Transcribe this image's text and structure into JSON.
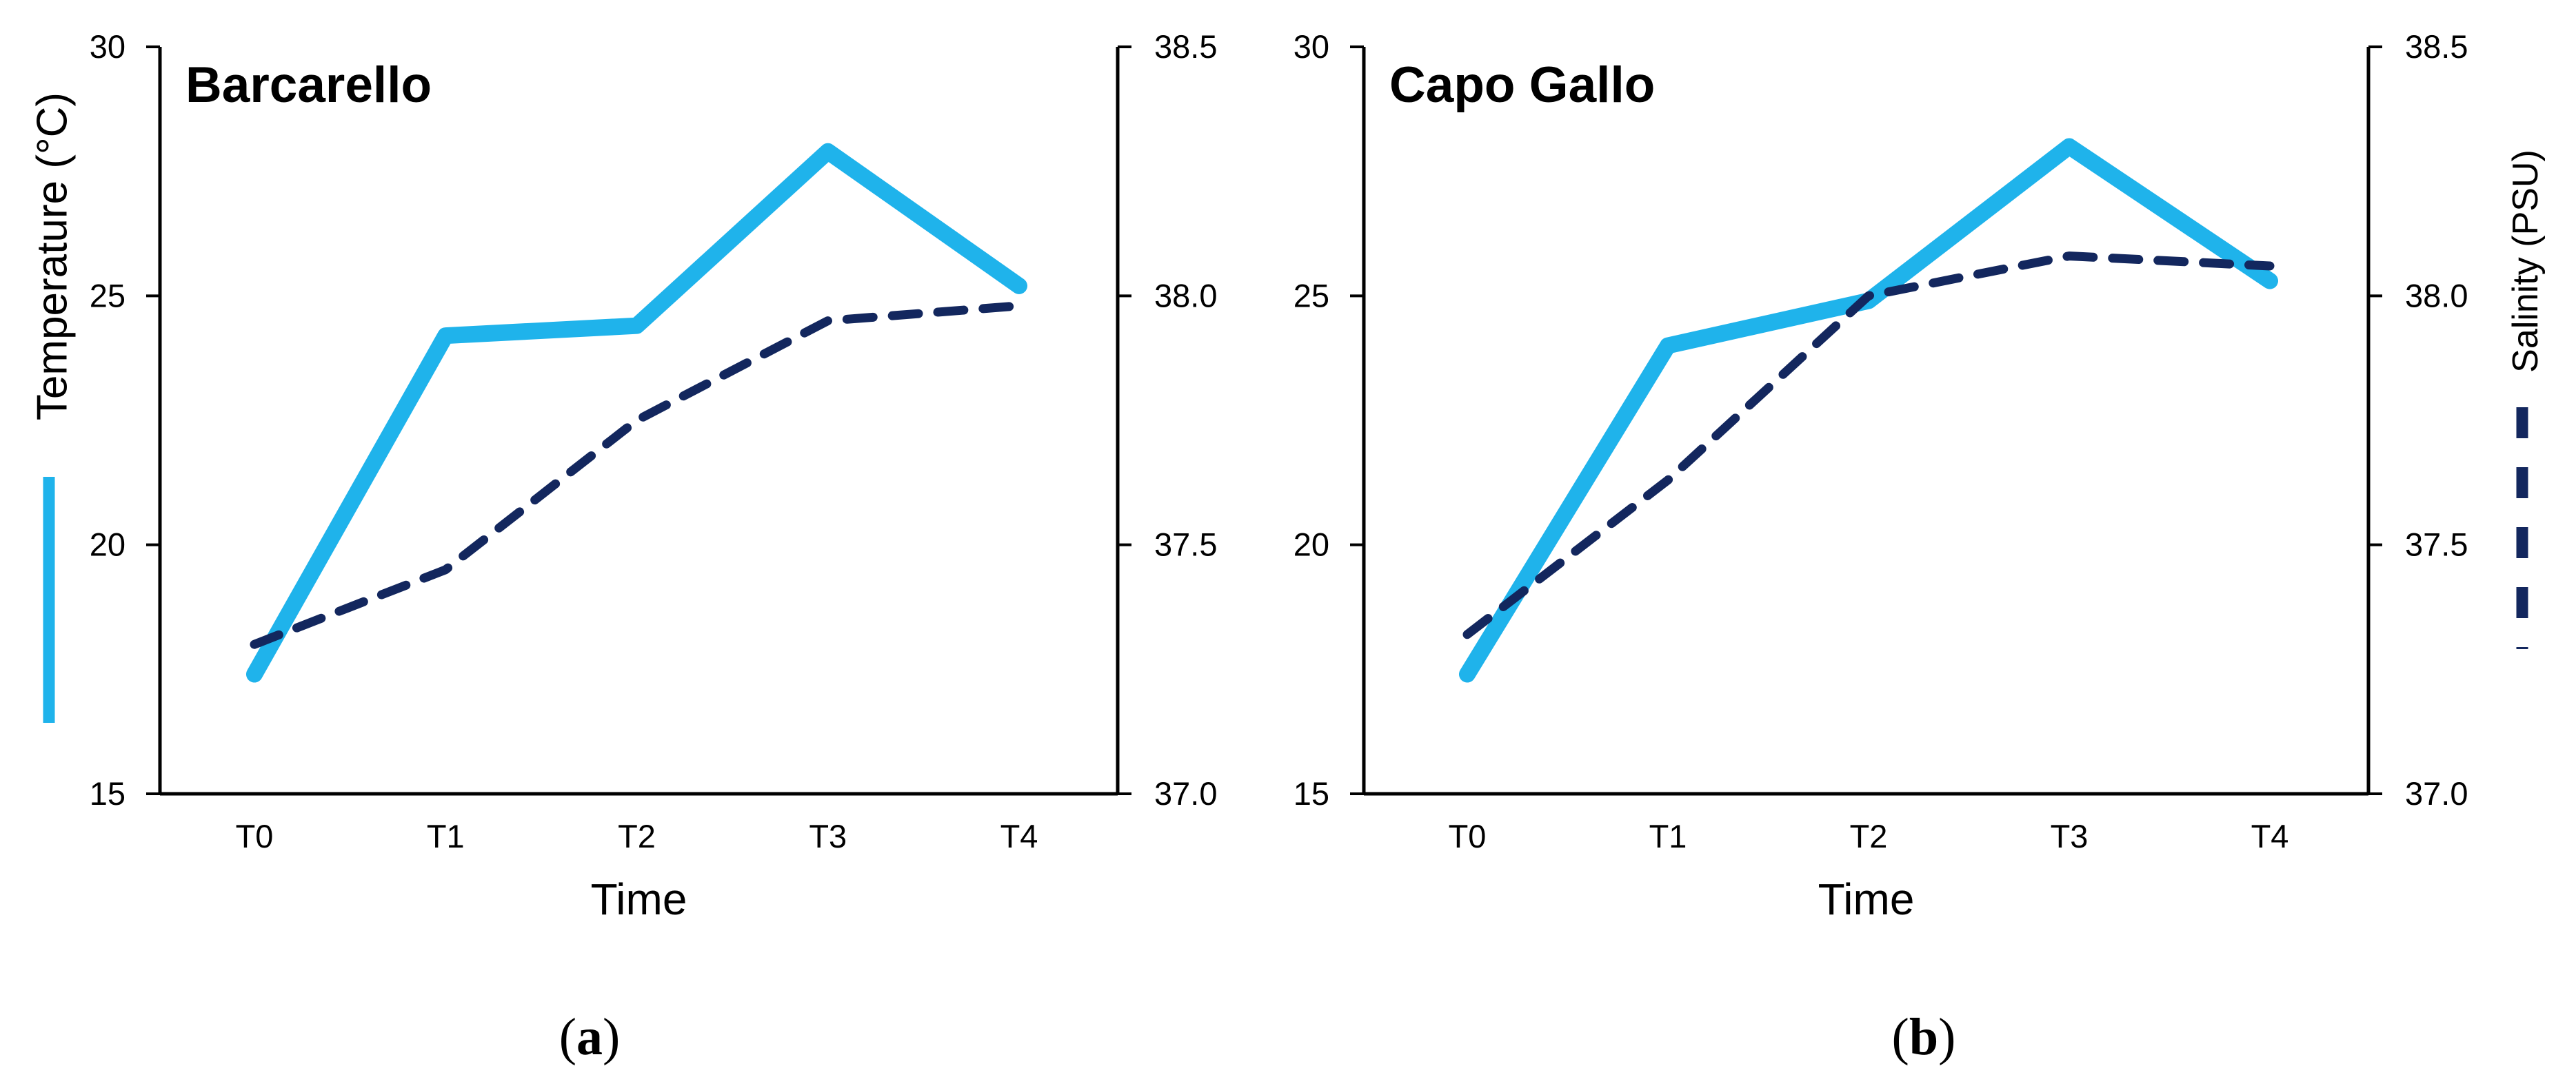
{
  "figure": {
    "background": "#FFFFFF",
    "colors": {
      "temperature_line": "#1FB3EB",
      "salinity_line": "#13275E",
      "axis": "#000000"
    },
    "legend": {
      "temperature_swatch": "solid-cyan-vertical-line",
      "salinity_swatch": "dashed-navy-vertical-line"
    }
  },
  "chart_data": [
    {
      "panel": "a",
      "type": "line",
      "title": "Barcarello",
      "categories": [
        "T0",
        "T1",
        "T2",
        "T3",
        "T4"
      ],
      "xlabel": "Time",
      "left_axis": {
        "label": "Temperature (°C)",
        "range": [
          15,
          30
        ],
        "tick_labels": [
          "30",
          "25",
          "20",
          "15"
        ]
      },
      "right_axis": {
        "label": "",
        "range": [
          37.0,
          38.5
        ],
        "tick_labels": [
          "38.5",
          "38.0",
          "37.5",
          "37.0"
        ]
      },
      "series": [
        {
          "name": "Temperature",
          "axis": "left",
          "line_style": "solid",
          "values": [
            17.4,
            24.2,
            24.4,
            27.9,
            25.2
          ]
        },
        {
          "name": "Salinity",
          "axis": "right",
          "line_style": "dashed",
          "values": [
            37.3,
            37.45,
            37.75,
            37.95,
            37.98
          ]
        }
      ],
      "caption": {
        "open": "(",
        "letter": "a",
        "close": ")"
      },
      "legend_position": "left-of-plot",
      "grid": "off"
    },
    {
      "panel": "b",
      "type": "line",
      "title": "Capo Gallo",
      "categories": [
        "T0",
        "T1",
        "T2",
        "T3",
        "T4"
      ],
      "xlabel": "Time",
      "left_axis": {
        "label": "",
        "range": [
          15,
          30
        ],
        "tick_labels": [
          "30",
          "25",
          "20",
          "15"
        ]
      },
      "right_axis": {
        "label": "Salinity (PSU)",
        "range": [
          37.0,
          38.5
        ],
        "tick_labels": [
          "38.5",
          "38.0",
          "37.5",
          "37.0"
        ]
      },
      "series": [
        {
          "name": "Temperature",
          "axis": "left",
          "line_style": "solid",
          "values": [
            17.4,
            24.0,
            24.9,
            28.0,
            25.3
          ]
        },
        {
          "name": "Salinity",
          "axis": "right",
          "line_style": "dashed",
          "values": [
            37.32,
            37.63,
            38.0,
            38.08,
            38.06
          ]
        }
      ],
      "caption": {
        "open": "(",
        "letter": "b",
        "close": ")"
      },
      "legend_position": "right-of-plot",
      "grid": "off"
    }
  ]
}
